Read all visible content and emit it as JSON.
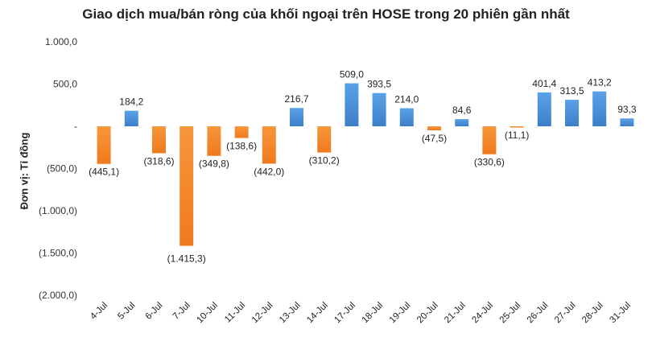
{
  "chart_data": {
    "type": "bar",
    "title": "Giao dịch mua/bán ròng của khối ngoại trên HOSE trong 20 phiên gần nhất",
    "ylabel": "Đơn vị: Tỉ đồng",
    "xlabel": "",
    "ylim": [
      -2000,
      1000
    ],
    "yticks": [
      1000,
      500,
      0,
      -500,
      -1000,
      -1500,
      -2000
    ],
    "ytick_labels": [
      "1.000,0",
      "500,0",
      "-",
      "(500,0)",
      "(1.000,0)",
      "(1.500,0)",
      "(2.000,0)"
    ],
    "categories": [
      "4-Jul",
      "5-Jul",
      "6-Jul",
      "7-Jul",
      "10-Jul",
      "11-Jul",
      "12-Jul",
      "13-Jul",
      "14-Jul",
      "17-Jul",
      "18-Jul",
      "19-Jul",
      "20-Jul",
      "21-Jul",
      "24-Jul",
      "25-Jul",
      "26-Jul",
      "27-Jul",
      "28-Jul",
      "31-Jul"
    ],
    "values": [
      -445.1,
      184.2,
      -318.6,
      -1415.3,
      -349.8,
      -138.6,
      -442.0,
      216.7,
      -310.2,
      509.0,
      393.5,
      214.0,
      -47.5,
      84.6,
      -330.6,
      -11.1,
      401.4,
      313.5,
      413.2,
      93.3
    ],
    "value_labels": [
      "(445,1)",
      "184,2",
      "(318,6)",
      "(1.415,3)",
      "(349,8)",
      "(138,6)",
      "(442,0)",
      "216,7",
      "(310,2)",
      "509,0",
      "393,5",
      "214,0",
      "(47,5)",
      "84,6",
      "(330,6)",
      "(11,1)",
      "401,4",
      "313,5",
      "413,2",
      "93,3"
    ],
    "colors": {
      "positive": "#4a90d9",
      "negative": "#f58a2c"
    },
    "grid": false,
    "legend": "none"
  }
}
